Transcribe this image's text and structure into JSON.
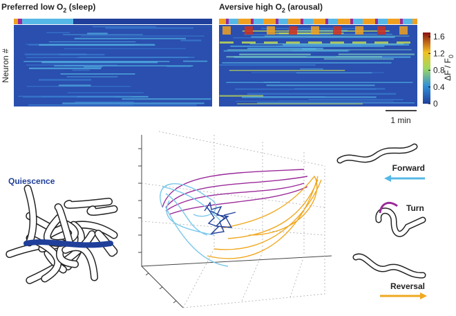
{
  "heatmap": {
    "left_title": [
      "Preferred low O",
      "2",
      " (sleep)"
    ],
    "right_title": [
      "Aversive high O",
      "2",
      " (arousal)"
    ],
    "y_label": "Neuron #",
    "scale_bar": "1 min",
    "colorbar": {
      "label": [
        "ΔF / F",
        "0"
      ],
      "lim": [
        0,
        1.7
      ],
      "ticks": [
        1.6,
        1.2,
        0.8,
        0.4,
        0
      ]
    }
  },
  "states": {
    "quiescence": "Quiescence",
    "forward": "Forward",
    "turn": "Turn",
    "reversal": "Reversal"
  }
}
